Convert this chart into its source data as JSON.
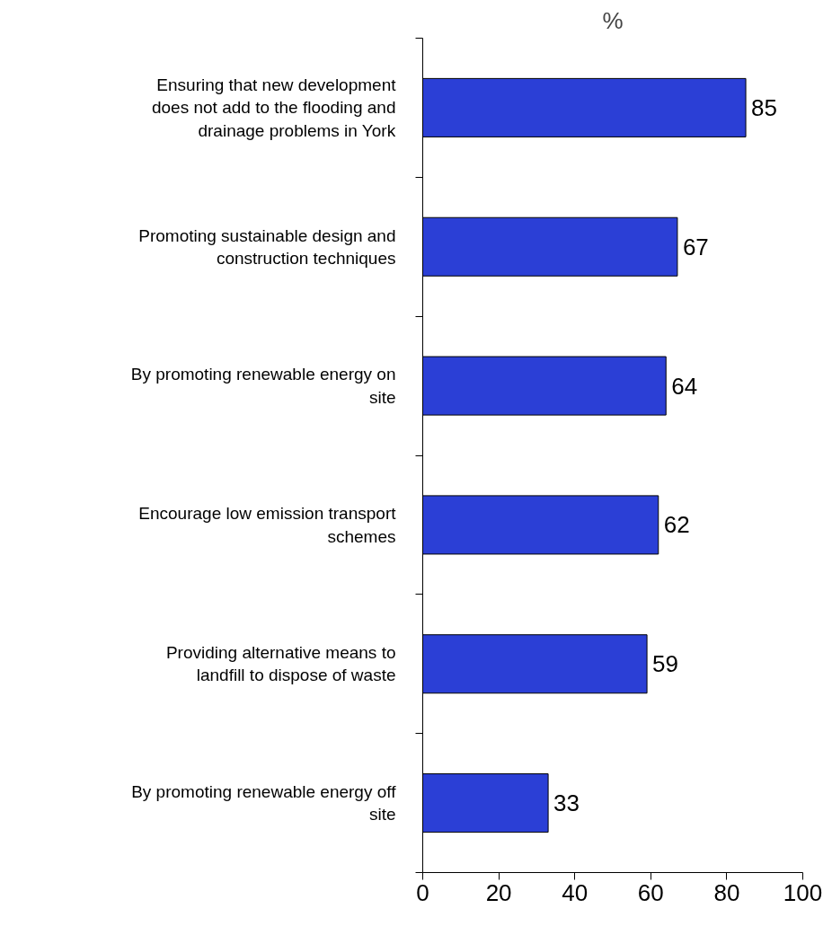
{
  "chart_data": {
    "type": "bar",
    "orientation": "horizontal",
    "xlabel": "%",
    "categories": [
      "Ensuring that new development does not add to the flooding and drainage problems in York",
      "Promoting sustainable design and construction techniques",
      "By promoting renewable energy on site",
      "Encourage low emission transport schemes",
      "Providing alternative means to landfill to dispose of waste",
      "By promoting renewable energy off site"
    ],
    "values": [
      85,
      67,
      64,
      62,
      59,
      33
    ],
    "color": "#2b3fd6",
    "xlim": [
      0,
      100
    ],
    "xticks": [
      0,
      20,
      40,
      60,
      80,
      100
    ],
    "grid": false,
    "data_labels": true
  }
}
